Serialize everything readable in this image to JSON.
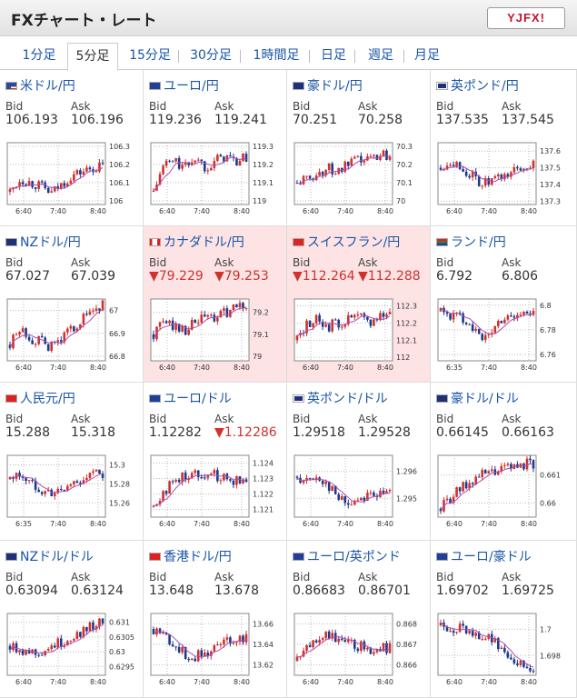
{
  "header": {
    "title": "FXチャート・レート",
    "logo": "YJFX!"
  },
  "tabs": [
    "1分足",
    "5分足",
    "15分足",
    "30分足",
    "1時間足",
    "日足",
    "週足",
    "月足"
  ],
  "active_tab": 1,
  "labels": {
    "bid": "Bid",
    "ask": "Ask"
  },
  "pairs": [
    {
      "name": "米ドル/円",
      "flag": "us",
      "bid": "106.193",
      "ask": "106.196",
      "down_bid": false,
      "down_ask": false,
      "chart_data": {
        "type": "candlestick",
        "x_ticks": [
          "6:40",
          "7:40",
          "8:40"
        ],
        "y_ticks": [
          "106.3",
          "106.2",
          "106.1",
          "106"
        ],
        "ylim": [
          105.98,
          106.32
        ],
        "trend": [
          106.05,
          106.12,
          106.1,
          106.08,
          106.04,
          106.09,
          106.14,
          106.16,
          106.18,
          106.19
        ]
      }
    },
    {
      "name": "ユーロ/円",
      "flag": "eu",
      "bid": "119.236",
      "ask": "119.241",
      "down_bid": false,
      "down_ask": false,
      "chart_data": {
        "type": "candlestick",
        "x_ticks": [
          "6:40",
          "7:40",
          "8:40"
        ],
        "y_ticks": [
          "119.3",
          "119.2",
          "119.1",
          "119"
        ],
        "ylim": [
          118.98,
          119.32
        ],
        "trend": [
          119.05,
          119.2,
          119.22,
          119.18,
          119.24,
          119.19,
          119.22,
          119.25,
          119.21,
          119.24
        ]
      }
    },
    {
      "name": "豪ドル/円",
      "flag": "au",
      "bid": "70.251",
      "ask": "70.258",
      "down_bid": false,
      "down_ask": false,
      "chart_data": {
        "type": "candlestick",
        "x_ticks": [
          "6:40",
          "7:40",
          "8:40"
        ],
        "y_ticks": [
          "70.3",
          "70.2",
          "70.1",
          "70"
        ],
        "ylim": [
          69.98,
          70.32
        ],
        "trend": [
          70.1,
          70.12,
          70.15,
          70.18,
          70.16,
          70.2,
          70.22,
          70.23,
          70.26,
          70.25
        ]
      }
    },
    {
      "name": "英ポンド/円",
      "flag": "gb",
      "bid": "137.535",
      "ask": "137.545",
      "down_bid": false,
      "down_ask": false,
      "chart_data": {
        "type": "candlestick",
        "x_ticks": [
          "6:40",
          "7:40",
          "8:40"
        ],
        "y_ticks": [
          "137.6",
          "137.5",
          "137.4",
          "137.3"
        ],
        "ylim": [
          137.28,
          137.65
        ],
        "trend": [
          137.5,
          137.55,
          137.5,
          137.45,
          137.4,
          137.42,
          137.44,
          137.48,
          137.5,
          137.53
        ]
      }
    },
    {
      "name": "NZドル/円",
      "flag": "nz",
      "bid": "67.027",
      "ask": "67.039",
      "down_bid": false,
      "down_ask": false,
      "chart_data": {
        "type": "candlestick",
        "x_ticks": [
          "6:40",
          "7:40",
          "8:40"
        ],
        "y_ticks": [
          "67",
          "66.9",
          "66.8"
        ],
        "ylim": [
          66.78,
          67.05
        ],
        "trend": [
          66.85,
          66.92,
          66.88,
          66.86,
          66.84,
          66.88,
          66.92,
          66.96,
          67.0,
          67.02
        ]
      }
    },
    {
      "name": "カナダドル/円",
      "flag": "ca",
      "bid": "▼79.229",
      "ask": "▼79.253",
      "down_bid": true,
      "down_ask": true,
      "highlight": true,
      "chart_data": {
        "type": "candlestick",
        "x_ticks": [
          "6:40",
          "7:40",
          "8:40"
        ],
        "y_ticks": [
          "79.2",
          "79.1",
          "79"
        ],
        "ylim": [
          78.98,
          79.26
        ],
        "trend": [
          79.1,
          79.16,
          79.14,
          79.12,
          79.15,
          79.18,
          79.17,
          79.2,
          79.22,
          79.23
        ]
      }
    },
    {
      "name": "スイスフラン/円",
      "flag": "ch",
      "bid": "▼112.264",
      "ask": "▼112.288",
      "down_bid": true,
      "down_ask": true,
      "highlight": true,
      "chart_data": {
        "type": "candlestick",
        "x_ticks": [
          "6:40",
          "7:40",
          "8:40"
        ],
        "y_ticks": [
          "112.3",
          "112.2",
          "112.1",
          "112"
        ],
        "ylim": [
          111.98,
          112.34
        ],
        "trend": [
          112.1,
          112.2,
          112.22,
          112.18,
          112.2,
          112.22,
          112.24,
          112.2,
          112.25,
          112.26
        ]
      }
    },
    {
      "name": "ランド/円",
      "flag": "za",
      "bid": "6.792",
      "ask": "6.806",
      "down_bid": false,
      "down_ask": false,
      "chart_data": {
        "type": "candlestick",
        "x_ticks": [
          "6:35",
          "7:40",
          "8:40"
        ],
        "y_ticks": [
          "6.8",
          "6.78",
          "6.76"
        ],
        "ylim": [
          6.755,
          6.805
        ],
        "trend": [
          6.795,
          6.792,
          6.79,
          6.785,
          6.77,
          6.78,
          6.79,
          6.792,
          6.793,
          6.792
        ]
      }
    },
    {
      "name": "人民元/円",
      "flag": "cn",
      "bid": "15.288",
      "ask": "15.318",
      "down_bid": false,
      "down_ask": false,
      "chart_data": {
        "type": "candlestick",
        "x_ticks": [
          "6:35",
          "7:40",
          "8:40"
        ],
        "y_ticks": [
          "15.3",
          "15.28",
          "15.26"
        ],
        "ylim": [
          15.245,
          15.31
        ],
        "trend": [
          15.285,
          15.29,
          15.28,
          15.275,
          15.27,
          15.272,
          15.28,
          15.285,
          15.29,
          15.29
        ]
      }
    },
    {
      "name": "ユーロ/ドル",
      "flag": "eu",
      "bid": "1.12282",
      "ask": "▼1.12286",
      "down_bid": false,
      "down_ask": true,
      "chart_data": {
        "type": "candlestick",
        "x_ticks": [
          "6:40",
          "7:40",
          "8:40"
        ],
        "y_ticks": [
          "1.124",
          "1.123",
          "1.122",
          "1.121"
        ],
        "ylim": [
          1.1205,
          1.1245
        ],
        "trend": [
          1.1212,
          1.1222,
          1.1228,
          1.1232,
          1.1233,
          1.1234,
          1.1232,
          1.123,
          1.1229,
          1.1228
        ]
      }
    },
    {
      "name": "英ポンド/ドル",
      "flag": "gb",
      "bid": "1.29518",
      "ask": "1.29528",
      "down_bid": false,
      "down_ask": false,
      "chart_data": {
        "type": "candlestick",
        "x_ticks": [
          "6:40",
          "7:40",
          "8:40"
        ],
        "y_ticks": [
          "1.296",
          "1.295"
        ],
        "ylim": [
          1.2943,
          1.2966
        ],
        "trend": [
          1.2958,
          1.2956,
          1.2958,
          1.2955,
          1.295,
          1.2948,
          1.295,
          1.2952,
          1.2951,
          1.2952
        ]
      }
    },
    {
      "name": "豪ドル/ドル",
      "flag": "au",
      "bid": "0.66145",
      "ask": "0.66163",
      "down_bid": false,
      "down_ask": false,
      "chart_data": {
        "type": "candlestick",
        "x_ticks": [
          "6:40",
          "7:40",
          "8:40"
        ],
        "y_ticks": [
          "0.661",
          "0.66"
        ],
        "ylim": [
          0.6595,
          0.6617
        ],
        "trend": [
          0.6598,
          0.6602,
          0.6605,
          0.6608,
          0.661,
          0.6611,
          0.6612,
          0.6613,
          0.6614,
          0.6614
        ]
      }
    },
    {
      "name": "NZドル/ドル",
      "flag": "nz",
      "bid": "0.63094",
      "ask": "0.63124",
      "down_bid": false,
      "down_ask": false,
      "chart_data": {
        "type": "candlestick",
        "x_ticks": [
          "6:40",
          "7:40",
          "8:40"
        ],
        "y_ticks": [
          "0.631",
          "0.6305",
          "0.63",
          "0.6295"
        ],
        "ylim": [
          0.6292,
          0.6313
        ],
        "trend": [
          0.6302,
          0.6301,
          0.63,
          0.63,
          0.6302,
          0.6303,
          0.6305,
          0.6307,
          0.6309,
          0.631
        ]
      }
    },
    {
      "name": "香港ドル/円",
      "flag": "hk",
      "bid": "13.648",
      "ask": "13.678",
      "down_bid": false,
      "down_ask": false,
      "chart_data": {
        "type": "candlestick",
        "x_ticks": [
          "6:40",
          "7:40",
          "8:40"
        ],
        "y_ticks": [
          "13.66",
          "13.64",
          "13.62"
        ],
        "ylim": [
          13.61,
          13.67
        ],
        "trend": [
          13.655,
          13.65,
          13.64,
          13.63,
          13.628,
          13.632,
          13.638,
          13.642,
          13.646,
          13.648
        ]
      }
    },
    {
      "name": "ユーロ/英ポンド",
      "flag": "eu",
      "bid": "0.86683",
      "ask": "0.86701",
      "down_bid": false,
      "down_ask": false,
      "chart_data": {
        "type": "candlestick",
        "x_ticks": [
          "6:40",
          "7:40",
          "8:40"
        ],
        "y_ticks": [
          "0.868",
          "0.867",
          "0.866"
        ],
        "ylim": [
          0.8655,
          0.8685
        ],
        "trend": [
          0.8662,
          0.8668,
          0.8674,
          0.8675,
          0.8672,
          0.867,
          0.8669,
          0.8668,
          0.8668,
          0.8668
        ]
      }
    },
    {
      "name": "ユーロ/豪ドル",
      "flag": "eu",
      "bid": "1.69702",
      "ask": "1.69725",
      "down_bid": false,
      "down_ask": false,
      "chart_data": {
        "type": "candlestick",
        "x_ticks": [
          "6:40",
          "7:40",
          "8:40"
        ],
        "y_ticks": [
          "1.7",
          "1.698"
        ],
        "ylim": [
          1.6965,
          1.7012
        ],
        "trend": [
          1.7003,
          1.7002,
          1.7,
          1.6998,
          1.6995,
          1.6992,
          1.6985,
          1.6978,
          1.6973,
          1.697
        ]
      }
    }
  ],
  "colors": {
    "up": "#d0312d",
    "down": "#1a3a8c",
    "ma": "#b24bb0",
    "highlight": "#fde3e3",
    "link": "#1a55a8"
  }
}
